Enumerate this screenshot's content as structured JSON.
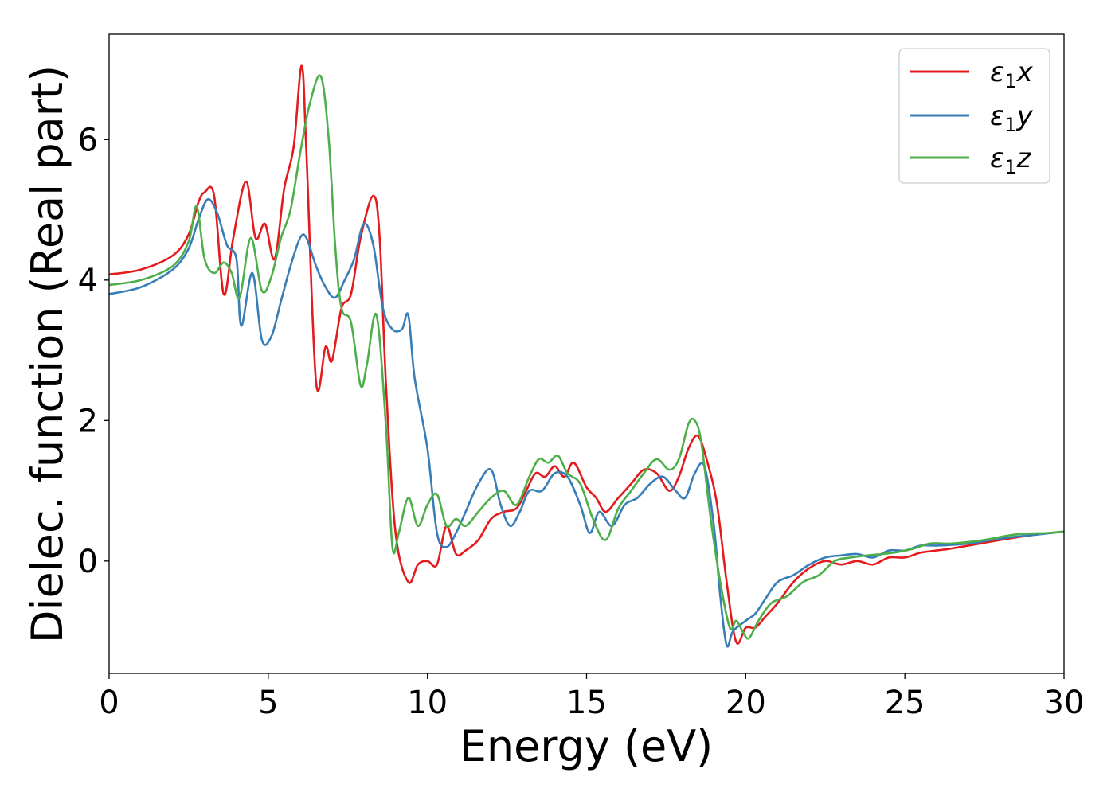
{
  "chart_data": {
    "type": "line",
    "title": "",
    "xlabel": "Energy (eV)",
    "ylabel": "Dielec. function (Real part)",
    "xlim": [
      0,
      30
    ],
    "ylim": [
      -1.6,
      7.5
    ],
    "xticks": [
      0,
      5,
      10,
      15,
      20,
      25,
      30
    ],
    "xtick_labels": [
      "0",
      "5",
      "10",
      "15",
      "20",
      "25",
      "30"
    ],
    "yticks": [
      0,
      2,
      4,
      6
    ],
    "ytick_labels": [
      "0",
      "2",
      "4",
      "6"
    ],
    "grid": false,
    "legend_position": "top-right",
    "series": [
      {
        "name": "ε1x",
        "color": "#e41a1c",
        "x": [
          0,
          1,
          2,
          2.5,
          2.8,
          3.0,
          3.3,
          3.6,
          3.9,
          4.3,
          4.6,
          4.9,
          5.2,
          5.5,
          5.8,
          6.05,
          6.2,
          6.5,
          6.8,
          7.0,
          7.3,
          7.6,
          7.9,
          8.3,
          8.5,
          8.7,
          9.0,
          9.4,
          9.7,
          10.0,
          10.3,
          10.6,
          10.9,
          11.2,
          11.6,
          12.0,
          12.4,
          12.8,
          13.1,
          13.4,
          13.7,
          14.0,
          14.3,
          14.6,
          15.0,
          15.3,
          15.6,
          16.0,
          16.4,
          16.8,
          17.2,
          17.6,
          17.9,
          18.2,
          18.5,
          18.8,
          19.1,
          19.4,
          19.7,
          20.0,
          20.3,
          20.6,
          21.0,
          21.5,
          22.0,
          22.5,
          23.0,
          23.5,
          24.0,
          24.5,
          25.0,
          25.5,
          26.0,
          26.5,
          27.0,
          28.0,
          29.0,
          30.0
        ],
        "values": [
          4.08,
          4.15,
          4.35,
          4.65,
          5.1,
          5.25,
          5.2,
          3.8,
          4.6,
          5.4,
          4.6,
          4.8,
          4.3,
          5.3,
          5.9,
          7.05,
          5.8,
          2.55,
          3.05,
          2.85,
          3.6,
          3.8,
          4.6,
          5.2,
          4.6,
          2.5,
          0.4,
          -0.3,
          -0.05,
          0.0,
          -0.05,
          0.5,
          0.1,
          0.15,
          0.3,
          0.6,
          0.7,
          0.75,
          1.0,
          1.25,
          1.2,
          1.35,
          1.2,
          1.4,
          1.05,
          0.9,
          0.7,
          0.9,
          1.1,
          1.3,
          1.25,
          1.0,
          1.2,
          1.6,
          1.78,
          1.4,
          0.8,
          -0.3,
          -1.15,
          -0.95,
          -0.95,
          -0.8,
          -0.6,
          -0.3,
          -0.1,
          0.0,
          -0.05,
          0.0,
          -0.05,
          0.05,
          0.05,
          0.12,
          0.15,
          0.18,
          0.22,
          0.3,
          0.37,
          0.42
        ]
      },
      {
        "name": "ε1y",
        "color": "#377eb8",
        "x": [
          0,
          1,
          2,
          2.5,
          2.8,
          3.1,
          3.4,
          3.7,
          4.0,
          4.15,
          4.5,
          4.8,
          5.1,
          5.4,
          5.7,
          6.0,
          6.2,
          6.5,
          6.8,
          7.1,
          7.4,
          7.7,
          8.0,
          8.3,
          8.6,
          8.9,
          9.2,
          9.4,
          9.6,
          10.0,
          10.3,
          10.6,
          10.9,
          11.2,
          11.6,
          12.0,
          12.3,
          12.6,
          12.9,
          13.2,
          13.6,
          14.0,
          14.4,
          14.8,
          15.1,
          15.4,
          15.8,
          16.2,
          16.6,
          17.0,
          17.4,
          17.8,
          18.1,
          18.4,
          18.7,
          19.0,
          19.2,
          19.4,
          19.6,
          20.0,
          20.3,
          20.6,
          21.0,
          21.5,
          22.0,
          22.5,
          23.0,
          23.5,
          24.0,
          24.5,
          25.0,
          25.5,
          26.0,
          27.0,
          28.0,
          29.0,
          30.0
        ],
        "values": [
          3.8,
          3.9,
          4.15,
          4.45,
          4.85,
          5.15,
          4.95,
          4.5,
          4.3,
          3.35,
          4.1,
          3.15,
          3.2,
          3.7,
          4.2,
          4.6,
          4.6,
          4.2,
          3.9,
          3.75,
          4.0,
          4.3,
          4.8,
          4.5,
          3.6,
          3.3,
          3.3,
          3.5,
          2.6,
          1.6,
          0.4,
          0.2,
          0.4,
          0.7,
          1.1,
          1.3,
          0.8,
          0.5,
          0.7,
          1.0,
          1.0,
          1.25,
          1.2,
          0.8,
          0.4,
          0.7,
          0.5,
          0.8,
          0.9,
          1.1,
          1.2,
          1.0,
          0.9,
          1.25,
          1.35,
          0.5,
          -0.5,
          -1.2,
          -1.0,
          -0.85,
          -0.75,
          -0.55,
          -0.3,
          -0.2,
          -0.05,
          0.05,
          0.08,
          0.1,
          0.05,
          0.15,
          0.15,
          0.22,
          0.22,
          0.25,
          0.32,
          0.37,
          0.42
        ]
      },
      {
        "name": "ε1z",
        "color": "#4daf4a",
        "x": [
          0,
          1,
          2,
          2.5,
          2.75,
          3.0,
          3.3,
          3.6,
          3.85,
          4.1,
          4.45,
          4.8,
          5.1,
          5.4,
          5.7,
          6.0,
          6.3,
          6.65,
          6.9,
          7.1,
          7.3,
          7.6,
          7.9,
          8.1,
          8.4,
          8.7,
          8.9,
          9.1,
          9.4,
          9.7,
          10.0,
          10.3,
          10.6,
          10.9,
          11.2,
          11.6,
          12.0,
          12.4,
          12.8,
          13.2,
          13.5,
          13.8,
          14.1,
          14.4,
          14.8,
          15.2,
          15.6,
          16.0,
          16.4,
          16.8,
          17.2,
          17.6,
          17.9,
          18.2,
          18.4,
          18.6,
          18.9,
          19.2,
          19.5,
          19.7,
          19.9,
          20.1,
          20.4,
          20.8,
          21.3,
          21.8,
          22.3,
          22.8,
          23.3,
          23.8,
          24.3,
          24.8,
          25.3,
          25.8,
          26.5,
          27.5,
          28.5,
          29.5,
          30.0
        ],
        "values": [
          3.93,
          4.0,
          4.2,
          4.55,
          5.05,
          4.3,
          4.1,
          4.25,
          4.1,
          3.75,
          4.6,
          3.85,
          4.05,
          4.6,
          5.0,
          5.8,
          6.5,
          6.9,
          6.0,
          4.5,
          3.6,
          3.4,
          2.5,
          2.8,
          3.5,
          1.9,
          0.2,
          0.4,
          0.9,
          0.5,
          0.8,
          0.95,
          0.5,
          0.6,
          0.5,
          0.7,
          0.9,
          1.0,
          0.8,
          1.2,
          1.45,
          1.4,
          1.5,
          1.25,
          1.1,
          0.6,
          0.3,
          0.75,
          1.0,
          1.25,
          1.45,
          1.3,
          1.45,
          1.95,
          2.0,
          1.7,
          0.6,
          -0.3,
          -0.95,
          -0.85,
          -1.0,
          -1.1,
          -0.85,
          -0.6,
          -0.5,
          -0.3,
          -0.2,
          0.0,
          0.05,
          0.08,
          0.1,
          0.13,
          0.18,
          0.25,
          0.25,
          0.3,
          0.38,
          0.4,
          0.42
        ]
      }
    ]
  },
  "legend": {
    "entries": [
      {
        "base": "ε",
        "sub": "1",
        "tail": "x"
      },
      {
        "base": "ε",
        "sub": "1",
        "tail": "y"
      },
      {
        "base": "ε",
        "sub": "1",
        "tail": "z"
      }
    ]
  }
}
